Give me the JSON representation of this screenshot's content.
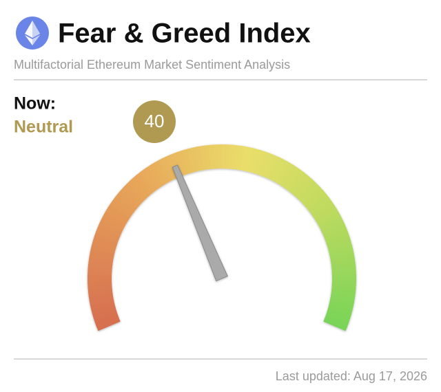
{
  "chart_data": {
    "type": "gauge",
    "title": "Fear & Greed Index",
    "subtitle": "Multifactorial Ethereum Market Sentiment Analysis",
    "now_label": "Now:",
    "sentiment": "Neutral",
    "value": 40,
    "ylim": [
      0,
      100
    ],
    "color": "#b09a52",
    "footer": "Last updated: Aug 17, 2026"
  }
}
